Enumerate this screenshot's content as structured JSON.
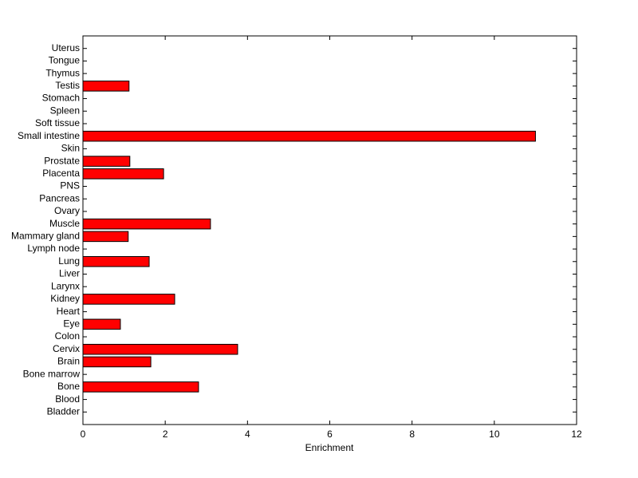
{
  "chart_data": {
    "type": "barh",
    "xlabel": "Enrichment",
    "categories": [
      "Bladder",
      "Blood",
      "Bone",
      "Bone marrow",
      "Brain",
      "Cervix",
      "Colon",
      "Eye",
      "Heart",
      "Kidney",
      "Larynx",
      "Liver",
      "Lung",
      "Lymph node",
      "Mammary gland",
      "Muscle",
      "Ovary",
      "Pancreas",
      "PNS",
      "Placenta",
      "Prostate",
      "Skin",
      "Small intestine",
      "Soft tissue",
      "Spleen",
      "Stomach",
      "Testis",
      "Thymus",
      "Tongue",
      "Uterus"
    ],
    "values": [
      0,
      0,
      2.81,
      0,
      1.65,
      3.76,
      0,
      0.91,
      0,
      2.23,
      0,
      0,
      1.61,
      0,
      1.1,
      3.1,
      0,
      0,
      0,
      1.96,
      1.14,
      0,
      11.0,
      0,
      0,
      0,
      1.12,
      0,
      0,
      0
    ],
    "color": "#ff0000",
    "xlim": [
      0,
      12
    ],
    "xticks": [
      0,
      2,
      4,
      6,
      8,
      10,
      12
    ],
    "grid": false
  }
}
